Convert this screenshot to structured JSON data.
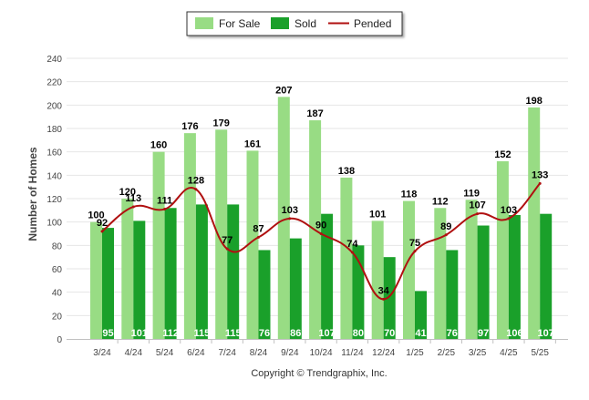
{
  "chart_data": {
    "type": "bar",
    "ylabel": "Number of Homes",
    "ylim": [
      0,
      240
    ],
    "y_ticks": [
      0,
      20,
      40,
      60,
      80,
      100,
      120,
      140,
      160,
      180,
      200,
      220,
      240
    ],
    "grid": true,
    "legend_position": "top-center",
    "categories": [
      "3/24",
      "4/24",
      "5/24",
      "6/24",
      "7/24",
      "8/24",
      "9/24",
      "10/24",
      "11/24",
      "12/24",
      "1/25",
      "2/25",
      "3/25",
      "4/25",
      "5/25"
    ],
    "series": [
      {
        "name": "For Sale",
        "kind": "bar",
        "color": "#98dc84",
        "values": [
          100,
          120,
          160,
          176,
          179,
          161,
          207,
          187,
          138,
          101,
          118,
          112,
          119,
          152,
          198
        ]
      },
      {
        "name": "Sold",
        "kind": "bar",
        "color": "#1aa02a",
        "values": [
          95,
          101,
          112,
          115,
          115,
          76,
          86,
          107,
          80,
          70,
          41,
          76,
          97,
          106,
          107
        ]
      },
      {
        "name": "Pended",
        "kind": "line",
        "color": "#b01010",
        "values": [
          92,
          113,
          111,
          128,
          77,
          87,
          103,
          90,
          74,
          34,
          75,
          89,
          107,
          103,
          133
        ]
      }
    ]
  },
  "footer": {
    "copyright": "Copyright © Trendgraphix, Inc."
  }
}
